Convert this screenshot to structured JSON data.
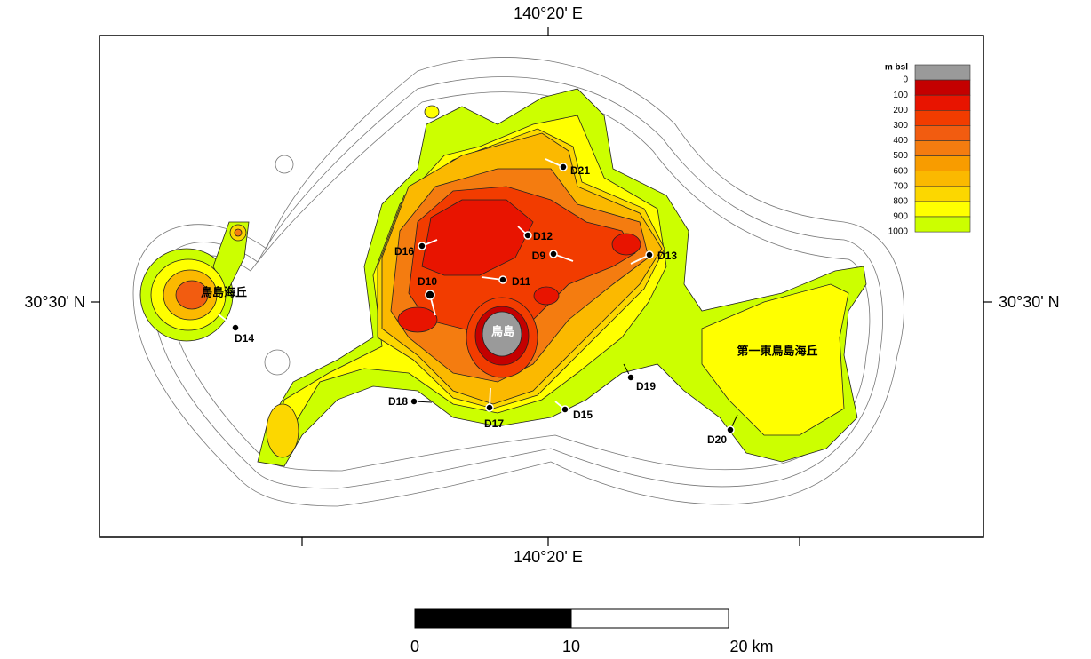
{
  "map": {
    "coordinate_labels": {
      "top": "140°20' E",
      "bottom": "140°20' E",
      "left": "30°30' N",
      "right": "30°30' N"
    },
    "legend": {
      "title": "m bsl",
      "depths": [
        0,
        100,
        200,
        300,
        400,
        500,
        600,
        700,
        800,
        900,
        1000
      ],
      "colors": [
        "#9a9a9a",
        "#c40000",
        "#e81400",
        "#f23c00",
        "#f25c10",
        "#f47c10",
        "#f89c00",
        "#fbb900",
        "#fcd700",
        "#ffff00",
        "#ccff00"
      ]
    },
    "place_names": [
      "鳥島海丘",
      "鳥島",
      "第一東鳥島海丘"
    ],
    "stations": [
      "D9",
      "D10",
      "D11",
      "D12",
      "D13",
      "D14",
      "D15",
      "D16",
      "D17",
      "D18",
      "D19",
      "D20",
      "D21"
    ],
    "scale_bar": {
      "labels": [
        "0",
        "10",
        "20 km"
      ]
    }
  }
}
